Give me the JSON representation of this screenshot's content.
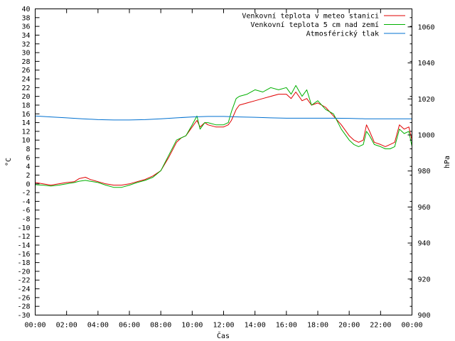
{
  "chart_data": {
    "type": "line",
    "xlabel": "Čas",
    "ylabel": "°C",
    "y2label": "hPa",
    "x_ticks": [
      "00:00",
      "02:00",
      "04:00",
      "06:00",
      "08:00",
      "10:00",
      "12:00",
      "14:00",
      "16:00",
      "18:00",
      "20:00",
      "22:00",
      "00:00"
    ],
    "x_range_hours": [
      0,
      24
    ],
    "ylim": [
      -30,
      40
    ],
    "y_step": 2,
    "y2lim": [
      900,
      1070
    ],
    "y2_ticks": [
      900,
      920,
      940,
      960,
      980,
      1000,
      1020,
      1040,
      1060
    ],
    "grid": false,
    "legend_position": "top-right",
    "series": [
      {
        "name": "Venkovní teplota v meteo stanici",
        "color": "#e00000",
        "axis": "left",
        "x": [
          0,
          0.5,
          1,
          1.5,
          2,
          2.5,
          2.8,
          3.2,
          3.5,
          4,
          4.5,
          5,
          5.5,
          6,
          6.5,
          7,
          7.5,
          8,
          8.5,
          9,
          9.3,
          9.6,
          10,
          10.3,
          10.5,
          10.8,
          11,
          11.5,
          12,
          12.3,
          12.5,
          12.8,
          13,
          13.5,
          14,
          14.5,
          15,
          15.5,
          16,
          16.3,
          16.6,
          17,
          17.3,
          17.6,
          18,
          18.5,
          19,
          19.5,
          20,
          20.3,
          20.6,
          20.9,
          21.1,
          21.3,
          21.6,
          22,
          22.3,
          22.6,
          22.9,
          23.2,
          23.5,
          23.8,
          24
        ],
        "y": [
          0.3,
          0,
          -0.3,
          0,
          0.3,
          0.5,
          1.2,
          1.5,
          1,
          0.5,
          0,
          -0.3,
          -0.3,
          0,
          0.5,
          1,
          1.8,
          3,
          6,
          9.5,
          10.5,
          11,
          13,
          14.5,
          13,
          14,
          13.5,
          13,
          13,
          13.5,
          14.5,
          17,
          18,
          18.5,
          19,
          19.5,
          20,
          20.5,
          20.5,
          19.5,
          21,
          19,
          19.5,
          18,
          18.5,
          17.5,
          15.5,
          13.5,
          11,
          10,
          9.5,
          10,
          13.5,
          12,
          9.5,
          9,
          8.5,
          9,
          9.5,
          13.5,
          12.5,
          13,
          10
        ]
      },
      {
        "name": "Venkovní teplota 5 cm nad zemí",
        "color": "#00b000",
        "axis": "left",
        "x": [
          0,
          0.5,
          1,
          1.5,
          2,
          2.5,
          2.8,
          3.2,
          3.5,
          4,
          4.5,
          5,
          5.5,
          6,
          6.5,
          7,
          7.5,
          8,
          8.5,
          9,
          9.3,
          9.6,
          10,
          10.3,
          10.5,
          10.8,
          11,
          11.5,
          12,
          12.3,
          12.5,
          12.8,
          13,
          13.5,
          14,
          14.5,
          15,
          15.5,
          16,
          16.3,
          16.6,
          17,
          17.3,
          17.6,
          18,
          18.5,
          19,
          19.5,
          20,
          20.3,
          20.6,
          20.9,
          21.1,
          21.3,
          21.6,
          22,
          22.3,
          22.6,
          22.9,
          23.2,
          23.5,
          23.8,
          24
        ],
        "y": [
          -0.2,
          -0.3,
          -0.5,
          -0.3,
          0,
          0.3,
          0.6,
          0.8,
          0.6,
          0.3,
          -0.3,
          -0.8,
          -0.8,
          -0.3,
          0.3,
          0.8,
          1.5,
          3,
          6.5,
          10,
          10.5,
          11,
          13.5,
          15.5,
          12.5,
          14,
          14,
          13.5,
          13.5,
          14,
          16.5,
          19.5,
          20,
          20.5,
          21.5,
          21,
          22,
          21.5,
          22,
          20.5,
          22.5,
          20,
          21.5,
          18,
          19,
          17,
          16,
          12.5,
          10,
          9,
          8.5,
          9,
          12,
          11,
          9,
          8.5,
          8,
          8,
          8.5,
          12.5,
          11.5,
          12,
          8.5
        ]
      },
      {
        "name": "Atmosférický tlak",
        "color": "#0070d0",
        "axis": "right",
        "x": [
          0,
          1,
          2,
          3,
          4,
          5,
          6,
          7,
          8,
          9,
          10,
          11,
          12,
          13,
          14,
          15,
          16,
          17,
          18,
          19,
          20,
          21,
          22,
          23,
          24
        ],
        "y": [
          1010.5,
          1010,
          1009.5,
          1009,
          1008.5,
          1008.3,
          1008.3,
          1008.5,
          1009,
          1009.5,
          1010,
          1010.3,
          1010.3,
          1010,
          1009.8,
          1009.5,
          1009.3,
          1009.3,
          1009.3,
          1009.3,
          1009.2,
          1009,
          1009,
          1009,
          1009
        ]
      }
    ]
  }
}
